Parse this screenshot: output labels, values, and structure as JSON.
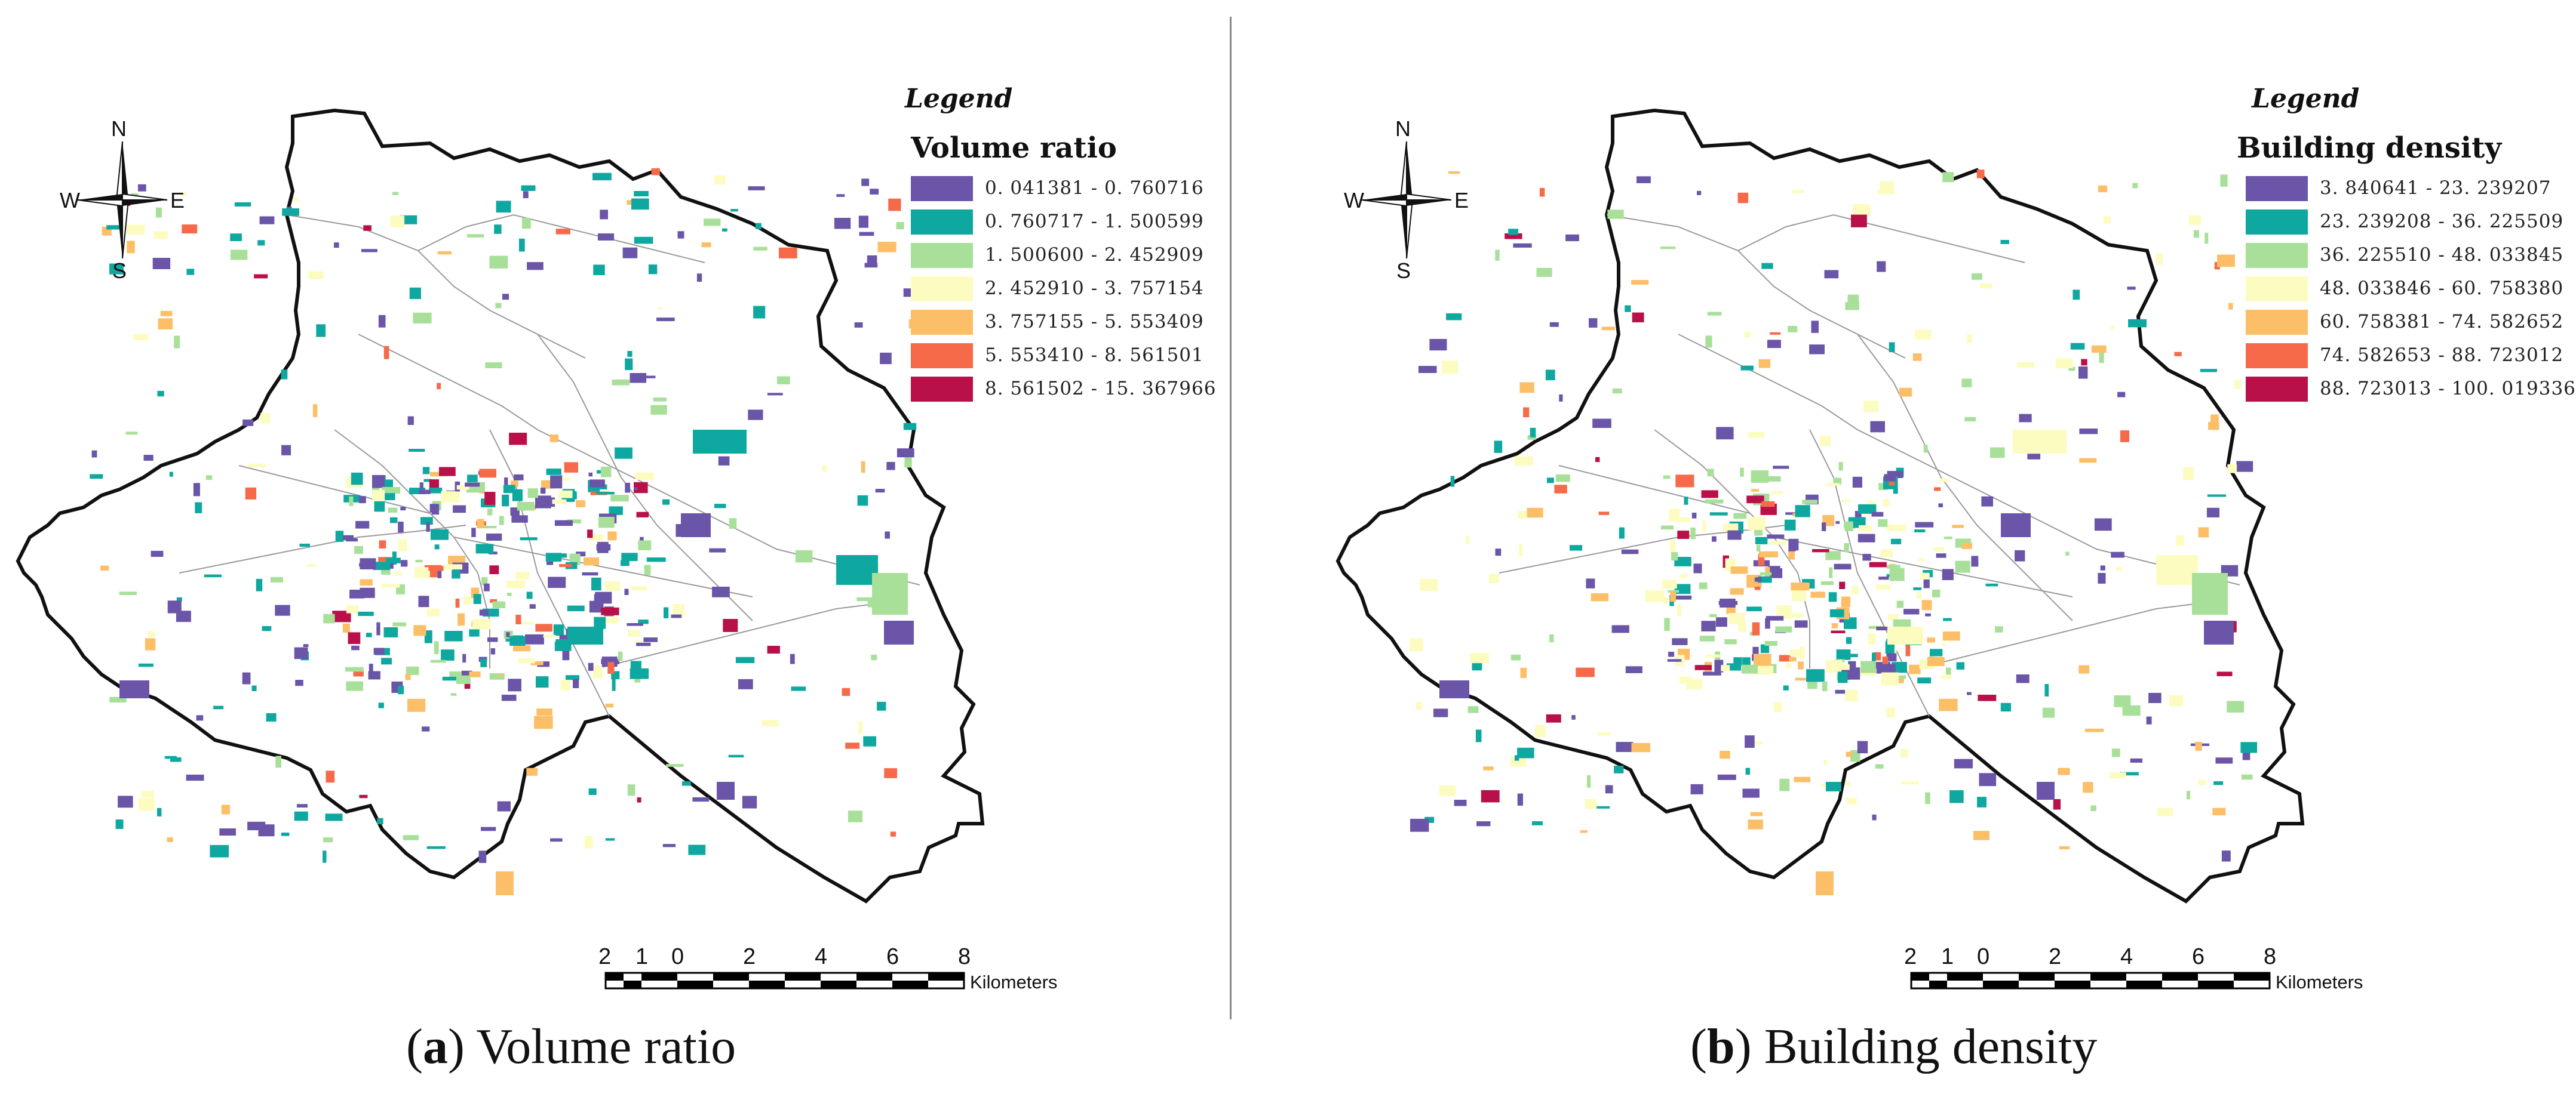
{
  "panels": [
    {
      "id": "a",
      "legend": {
        "title": "Legend",
        "variable": "Volume ratio",
        "classes": [
          {
            "range": "0. 041381 - 0. 760716",
            "color": "#6a55a8"
          },
          {
            "range": "0. 760717 - 1. 500599",
            "color": "#0fa8a0"
          },
          {
            "range": "1. 500600 - 2. 452909",
            "color": "#a8e09a"
          },
          {
            "range": "2. 452910 - 3. 757154",
            "color": "#fdfcc0"
          },
          {
            "range": "3. 757155 - 5. 553409",
            "color": "#fcbf68"
          },
          {
            "range": "5. 553410 - 8. 561501",
            "color": "#f66a4a"
          },
          {
            "range": "8. 561502 - 15. 367966",
            "color": "#b9104a"
          }
        ]
      },
      "compass": {
        "n": "N",
        "s": "S",
        "e": "E",
        "w": "W"
      },
      "scale": {
        "labels": [
          "2",
          "1",
          "0",
          "2",
          "4",
          "6",
          "8"
        ],
        "unit": "Kilometers"
      },
      "caption": {
        "letter": "a",
        "text": " Volume ratio"
      }
    },
    {
      "id": "b",
      "legend": {
        "title": "Legend",
        "variable": "Building density",
        "classes": [
          {
            "range": "3. 840641 - 23. 239207",
            "color": "#6a55a8"
          },
          {
            "range": "23. 239208 - 36. 225509",
            "color": "#0fa8a0"
          },
          {
            "range": "36. 225510 - 48. 033845",
            "color": "#a8e09a"
          },
          {
            "range": "48. 033846 - 60. 758380",
            "color": "#fdfcc0"
          },
          {
            "range": "60. 758381 - 74. 582652",
            "color": "#fcbf68"
          },
          {
            "range": "74. 582653 - 88. 723012",
            "color": "#f66a4a"
          },
          {
            "range": "88. 723013 - 100. 019336",
            "color": "#b9104a"
          }
        ]
      },
      "compass": {
        "n": "N",
        "s": "S",
        "e": "E",
        "w": "W"
      },
      "scale": {
        "labels": [
          "2",
          "1",
          "0",
          "2",
          "4",
          "6",
          "8"
        ],
        "unit": "Kilometers"
      },
      "caption": {
        "letter": "b",
        "text": " Building density"
      }
    }
  ]
}
